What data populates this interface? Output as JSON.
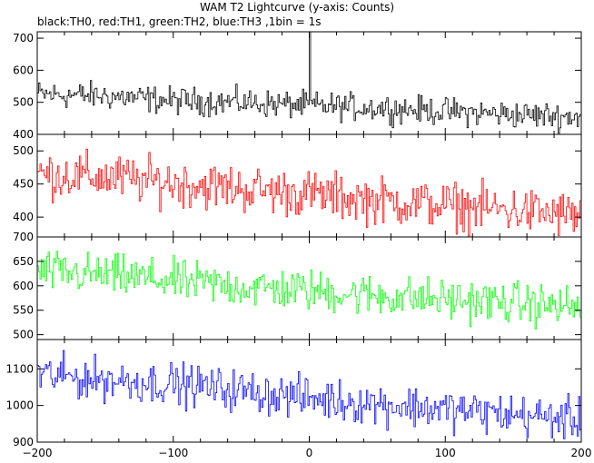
{
  "chart_data": {
    "type": "line",
    "title": "WAM T2 Lightcurve (y-axis: Counts)",
    "subtitle": "black:TH0, red:TH1, green:TH2, blue:TH3 ,1bin = 1s",
    "xlabel": "",
    "ylabel": "",
    "xlim": [
      -200,
      200
    ],
    "x_ticks": [
      -200,
      -100,
      0,
      100,
      200
    ],
    "grid": false,
    "panels": [
      {
        "name": "TH0",
        "color": "#000000",
        "ylim": [
          400,
          720
        ],
        "y_ticks": [
          400,
          500,
          600,
          700
        ],
        "trend": {
          "x": [
            -200,
            -150,
            -100,
            -50,
            0,
            50,
            100,
            150,
            200
          ],
          "y": [
            525,
            520,
            505,
            500,
            490,
            483,
            472,
            462,
            455
          ]
        },
        "noise": 30,
        "spike": {
          "x": 0,
          "y": 720
        }
      },
      {
        "name": "TH1",
        "color": "#ff0000",
        "ylim": [
          370,
          525
        ],
        "y_ticks": [
          400,
          450,
          500
        ],
        "trend": {
          "x": [
            -200,
            -150,
            -100,
            -50,
            0,
            50,
            100,
            150,
            200
          ],
          "y": [
            465,
            460,
            452,
            443,
            435,
            425,
            418,
            410,
            402
          ]
        },
        "noise": 25
      },
      {
        "name": "TH2",
        "color": "#00ff00",
        "ylim": [
          490,
          700
        ],
        "y_ticks": [
          500,
          550,
          600,
          650,
          700
        ],
        "trend": {
          "x": [
            -200,
            -150,
            -100,
            -50,
            0,
            50,
            100,
            150,
            200
          ],
          "y": [
            630,
            622,
            610,
            598,
            590,
            580,
            572,
            565,
            555
          ]
        },
        "noise": 30
      },
      {
        "name": "TH3",
        "color": "#0000ff",
        "ylim": [
          900,
          1180
        ],
        "y_ticks": [
          900,
          1000,
          1100
        ],
        "trend": {
          "x": [
            -200,
            -150,
            -100,
            -50,
            0,
            50,
            100,
            150,
            200
          ],
          "y": [
            1085,
            1070,
            1060,
            1040,
            1020,
            1005,
            990,
            975,
            960
          ]
        },
        "noise": 40
      }
    ]
  }
}
